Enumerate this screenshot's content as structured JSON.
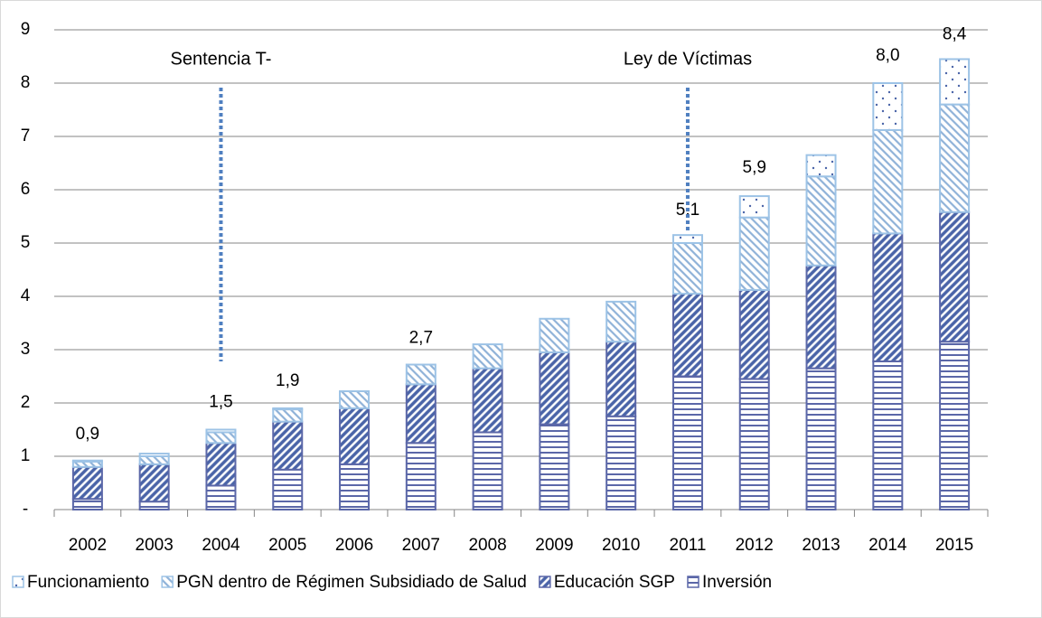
{
  "chart_data": {
    "type": "stacked_bar",
    "categories": [
      "2002",
      "2003",
      "2004",
      "2005",
      "2006",
      "2007",
      "2008",
      "2009",
      "2010",
      "2011",
      "2012",
      "2013",
      "2014",
      "2015"
    ],
    "series": [
      {
        "name": "Inversión",
        "color": "#5b67a8",
        "pattern": "hlines",
        "values": [
          0.2,
          0.15,
          0.45,
          0.75,
          0.85,
          1.25,
          1.45,
          1.6,
          1.75,
          2.5,
          2.45,
          2.65,
          2.78,
          3.15
        ]
      },
      {
        "name": "Educación SGP",
        "color": "#5b67a8",
        "pattern": "dhatch-dark",
        "values": [
          0.6,
          0.7,
          0.8,
          0.9,
          1.05,
          1.1,
          1.2,
          1.35,
          1.4,
          1.55,
          1.67,
          1.93,
          2.4,
          2.43
        ]
      },
      {
        "name": "PGN dentro de Régimen Subsidiado de Salud",
        "color": "#9dc3e6",
        "pattern": "dhatch-light",
        "values": [
          0.1,
          0.15,
          0.2,
          0.23,
          0.32,
          0.37,
          0.45,
          0.63,
          0.75,
          0.95,
          1.36,
          1.67,
          1.94,
          2.02
        ]
      },
      {
        "name": "Funcionamiento",
        "color": "#9dc3e6",
        "pattern": "dots",
        "values": [
          0.02,
          0.05,
          0.05,
          0.02,
          0,
          0,
          0,
          0,
          0,
          0.15,
          0.4,
          0.4,
          0.88,
          0.85
        ]
      }
    ],
    "totals": [
      0.9,
      null,
      1.5,
      1.9,
      null,
      2.7,
      null,
      null,
      null,
      5.1,
      5.9,
      null,
      8.0,
      8.4
    ],
    "total_labels": [
      "0,9",
      null,
      "1,5",
      "1,9",
      null,
      "2,7",
      null,
      null,
      null,
      "5,1",
      "5,9",
      null,
      "8,0",
      "8,4"
    ],
    "ylim": [
      0,
      9
    ],
    "yticks": [
      {
        "value": 0,
        "label": "-"
      },
      1,
      2,
      3,
      4,
      5,
      6,
      7,
      8,
      9
    ],
    "grid": true,
    "legend_order": [
      3,
      2,
      1,
      0
    ],
    "annotations": [
      {
        "text": "Sentencia T-",
        "x": "2004"
      },
      {
        "text": "Ley de Víctimas",
        "x": "2011"
      }
    ]
  }
}
